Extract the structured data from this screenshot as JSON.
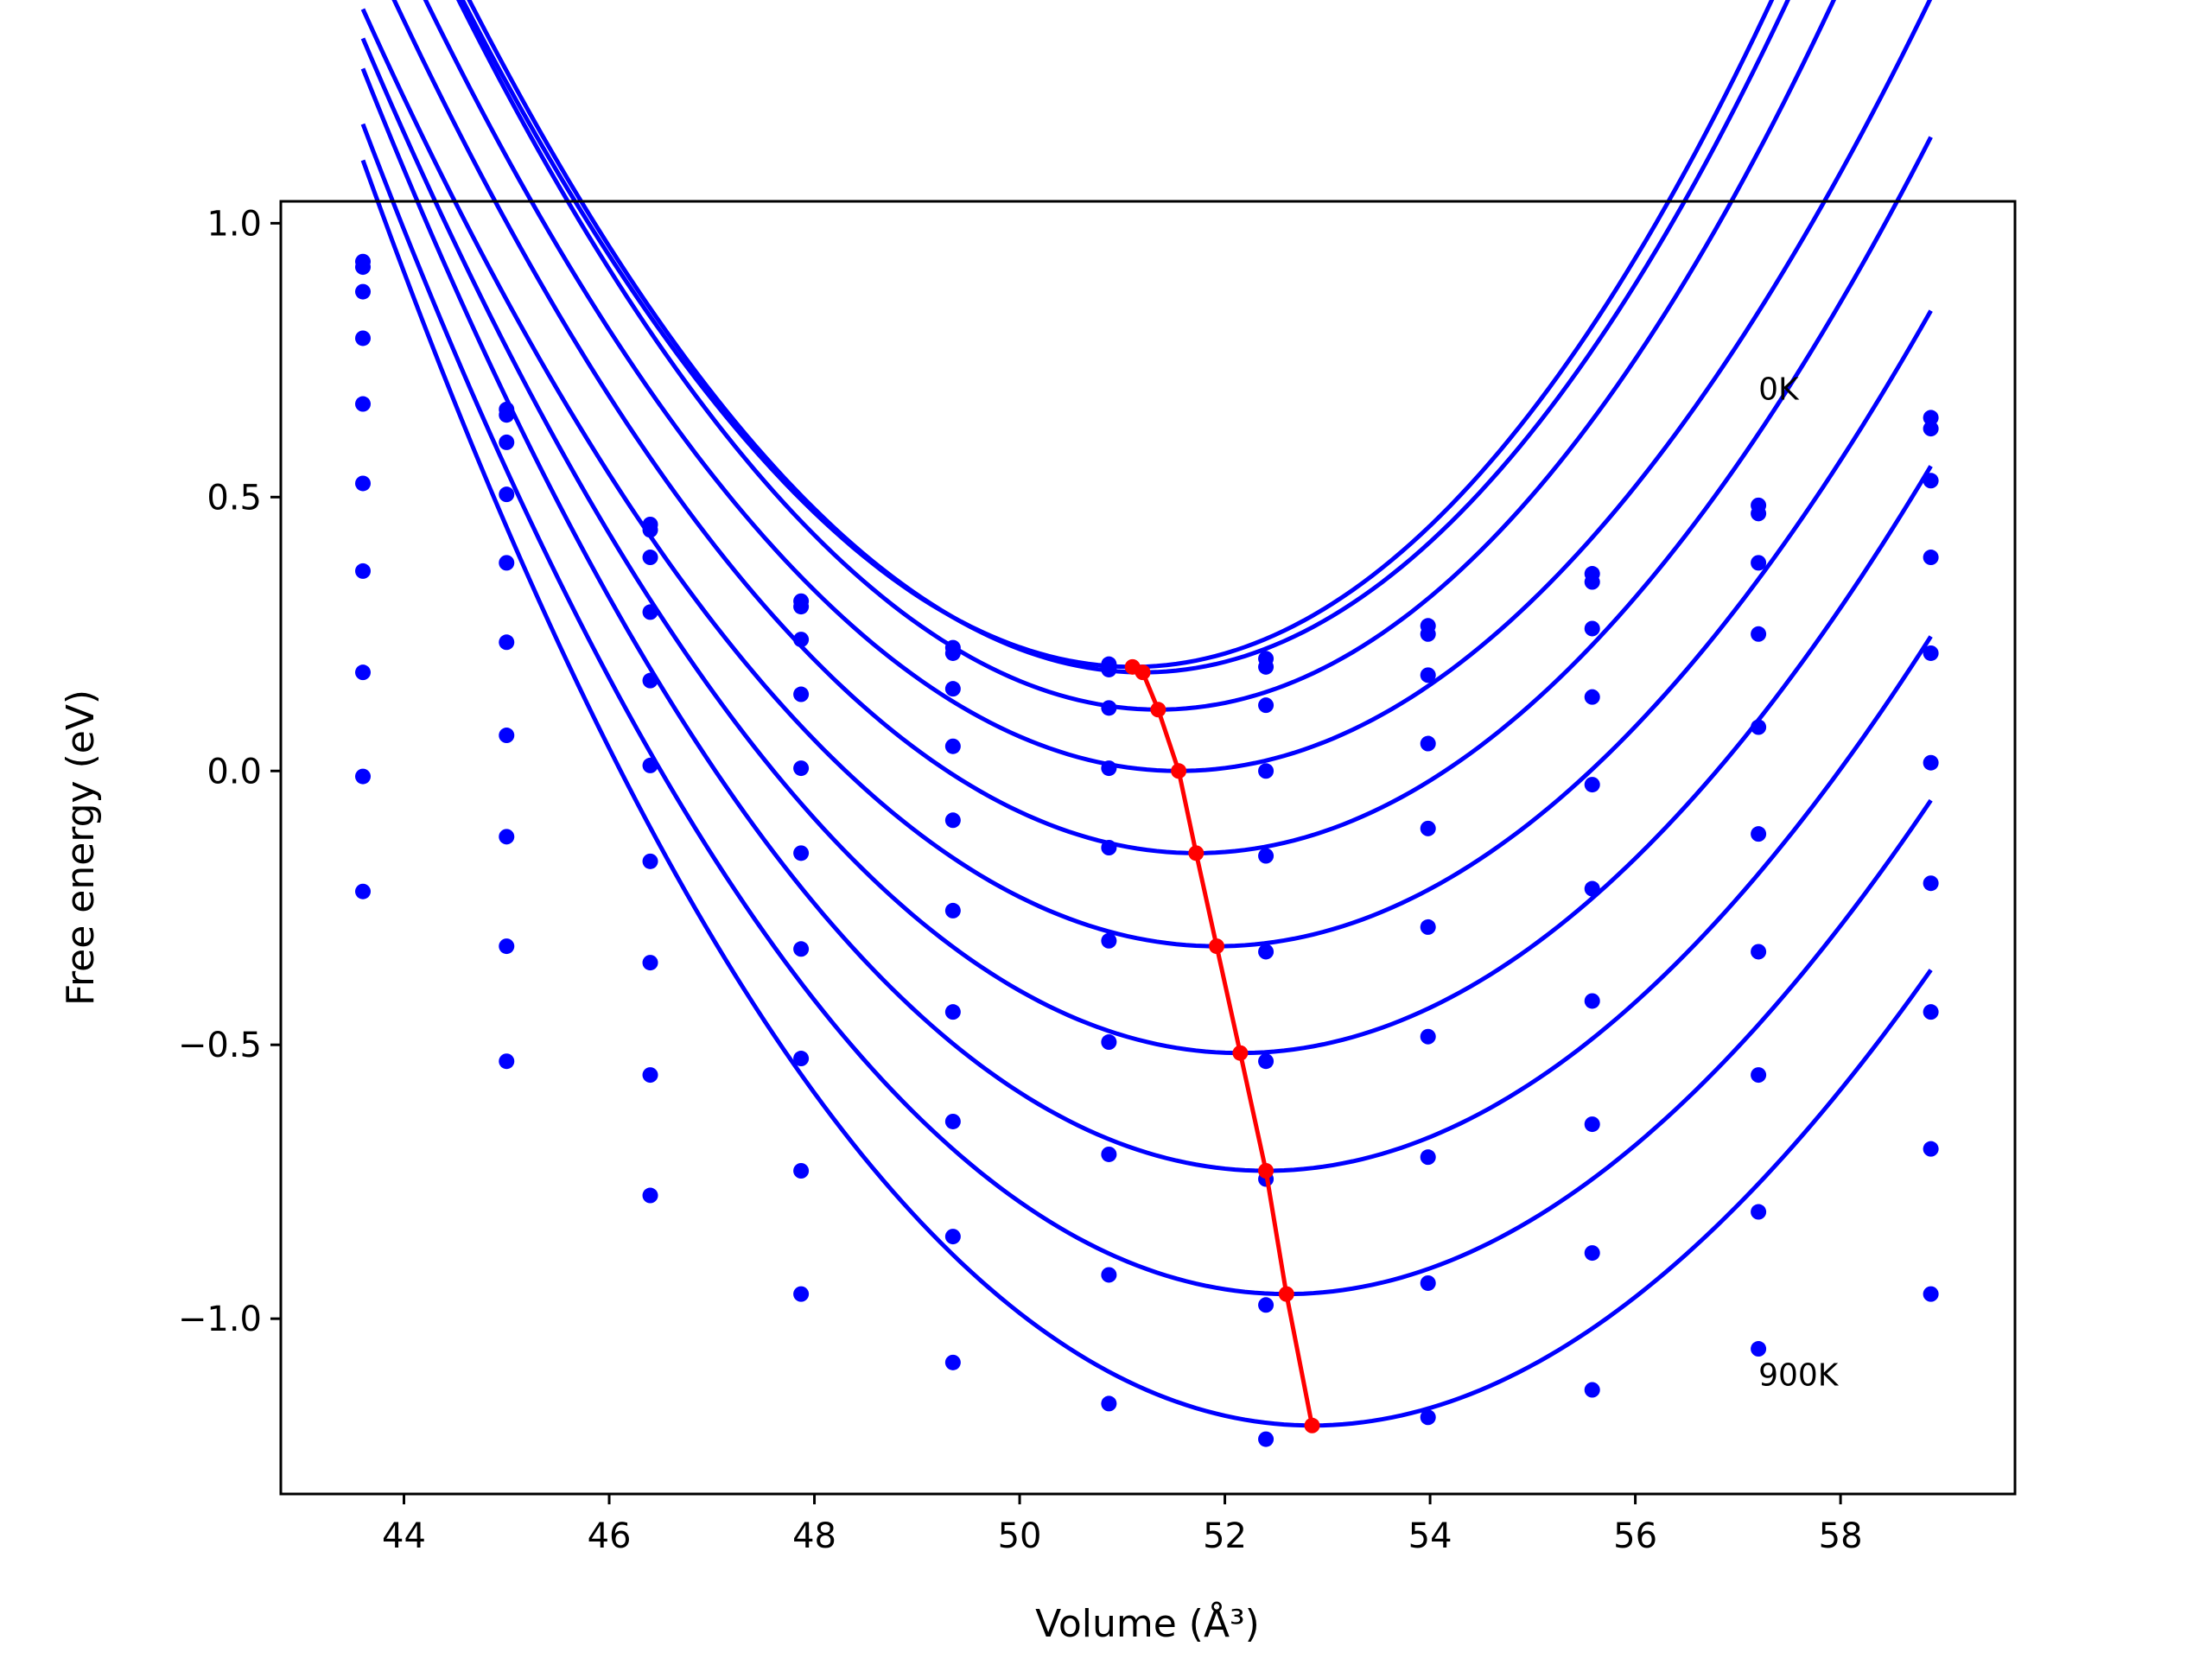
{
  "chart_data": {
    "type": "line",
    "xlabel": "Volume (Å³)",
    "ylabel": "Free energy (eV)",
    "xlim": [
      42.8,
      59.7
    ],
    "ylim": [
      -1.32,
      1.04
    ],
    "xticks": [
      "44",
      "46",
      "48",
      "50",
      "52",
      "54",
      "56",
      "58"
    ],
    "yticks": [
      "1.0",
      "0.5",
      "0.0",
      "−0.5",
      "−1.0"
    ],
    "grid": false,
    "annotations": [
      {
        "text": "0K",
        "x": 57.2,
        "y": 0.7
      },
      {
        "text": "900K",
        "x": 57.2,
        "y": -1.1
      }
    ],
    "colors": {
      "curves": "#0000ff",
      "minima": "#ff0000"
    },
    "points_x": [
      43.6,
      45.0,
      46.4,
      47.87,
      49.35,
      50.87,
      52.4,
      53.98,
      55.58,
      57.2,
      58.88
    ],
    "series": [
      {
        "fit": {
          "vmin": 51.1,
          "fmin": 0.19,
          "a": 0.03,
          "b": 0.00022
        },
        "points": [
          0.93,
          0.66,
          0.45,
          0.31,
          0.225,
          0.195,
          0.205,
          0.265,
          0.36,
          0.485,
          0.645
        ]
      },
      {
        "fit": {
          "vmin": 51.2,
          "fmin": 0.18,
          "a": 0.0298,
          "b": 0.0002
        },
        "points": [
          0.92,
          0.65,
          0.44,
          0.3,
          0.215,
          0.185,
          0.19,
          0.25,
          0.345,
          0.47,
          0.625
        ]
      },
      {
        "fit": {
          "vmin": 51.35,
          "fmin": 0.112,
          "a": 0.0289,
          "b": 0.00015
        },
        "points": [
          0.875,
          0.6,
          0.39,
          0.24,
          0.15,
          0.115,
          0.12,
          0.175,
          0.26,
          0.38,
          0.53
        ]
      },
      {
        "fit": {
          "vmin": 51.55,
          "fmin": 0.0,
          "a": 0.0262,
          "b": 1e-05
        },
        "points": [
          0.79,
          0.505,
          0.29,
          0.14,
          0.045,
          0.005,
          0.0,
          0.05,
          0.135,
          0.25,
          0.39
        ]
      },
      {
        "fit": {
          "vmin": 51.72,
          "fmin": -0.15,
          "a": 0.0255,
          "b": 0.0
        },
        "points": [
          0.67,
          0.38,
          0.165,
          0.005,
          -0.09,
          -0.14,
          -0.155,
          -0.105,
          -0.025,
          0.08,
          0.215
        ]
      },
      {
        "fit": {
          "vmin": 51.92,
          "fmin": -0.32,
          "a": 0.0243,
          "b": -5e-05
        },
        "points": [
          0.525,
          0.235,
          0.01,
          -0.15,
          -0.255,
          -0.31,
          -0.33,
          -0.285,
          -0.215,
          -0.115,
          0.015
        ]
      },
      {
        "fit": {
          "vmin": 52.15,
          "fmin": -0.515,
          "a": 0.0244,
          "b": -0.00011
        },
        "points": [
          0.365,
          0.065,
          -0.165,
          -0.325,
          -0.44,
          -0.495,
          -0.53,
          -0.485,
          -0.42,
          -0.33,
          -0.205
        ]
      },
      {
        "fit": {
          "vmin": 52.4,
          "fmin": -0.73,
          "a": 0.0244,
          "b": -0.00018
        },
        "points": [
          0.18,
          -0.12,
          -0.35,
          -0.525,
          -0.64,
          -0.7,
          -0.745,
          -0.705,
          -0.645,
          -0.555,
          -0.44
        ]
      },
      {
        "fit": {
          "vmin": 52.6,
          "fmin": -0.955,
          "a": 0.0243,
          "b": -0.00023
        },
        "points": [
          -0.01,
          -0.32,
          -0.555,
          -0.73,
          -0.85,
          -0.92,
          -0.975,
          -0.935,
          -0.88,
          -0.805,
          -0.69
        ]
      },
      {
        "fit": {
          "vmin": 52.85,
          "fmin": -1.195,
          "a": 0.0245,
          "b": -0.00027
        },
        "points": [
          -0.22,
          -0.53,
          -0.775,
          -0.955,
          -1.08,
          -1.155,
          -1.22,
          -1.18,
          -1.13,
          -1.055,
          -0.955
        ]
      }
    ],
    "minima_curve": {
      "x": [
        51.1,
        51.2,
        51.35,
        51.55,
        51.72,
        51.92,
        52.15,
        52.4,
        52.6,
        52.85
      ],
      "y": [
        0.19,
        0.18,
        0.112,
        0.0,
        -0.15,
        -0.32,
        -0.515,
        -0.73,
        -0.955,
        -1.195
      ]
    }
  }
}
